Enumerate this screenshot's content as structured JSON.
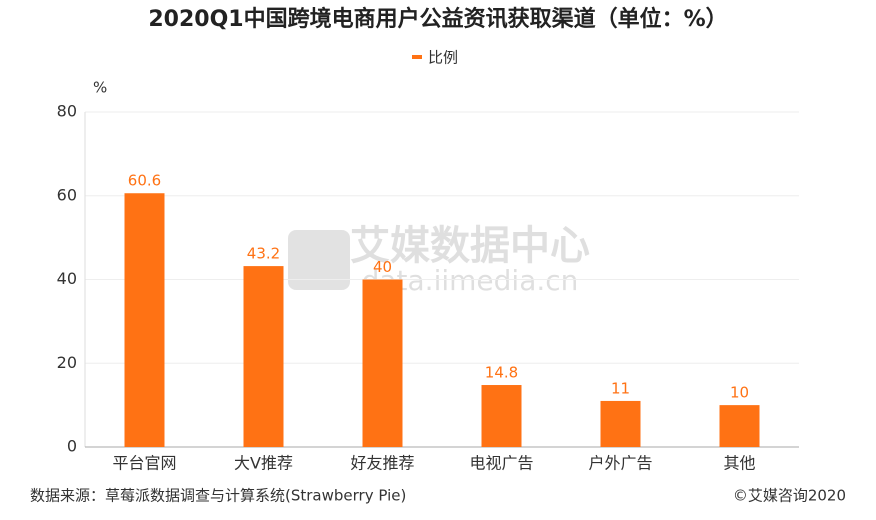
{
  "chart_data": {
    "type": "bar",
    "title": "2020Q1中国跨境电商用户公益资讯获取渠道（单位：%）",
    "y_unit": "%",
    "categories": [
      "平台官网",
      "大V推荐",
      "好友推荐",
      "电视广告",
      "户外广告",
      "其他"
    ],
    "series": [
      {
        "name": "比例",
        "color": "#ff7214",
        "values": [
          60.6,
          43.2,
          40,
          14.8,
          11,
          10
        ]
      }
    ],
    "ylim": [
      0,
      80
    ],
    "yticks": [
      0,
      20,
      40,
      60,
      80
    ],
    "grid": true,
    "legend": "top",
    "source": "数据来源：草莓派数据调查与计算系统(Strawberry Pie)",
    "copyright": "©艾媒咨询2020",
    "watermark": {
      "text": "艾媒数据中心",
      "url": "data.iimedia.cn"
    }
  }
}
